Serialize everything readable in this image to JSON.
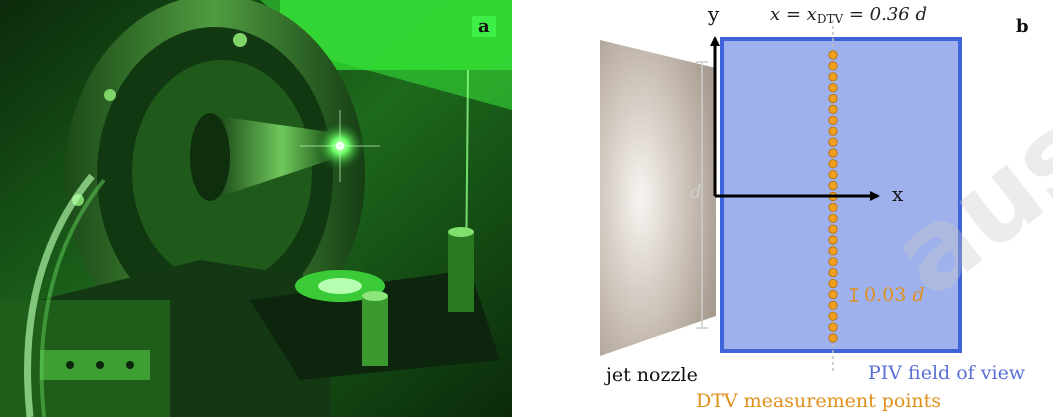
{
  "panel_a": {
    "label": "a"
  },
  "panel_b": {
    "label": "b",
    "equation": {
      "lhs": "x = x",
      "sub": "DTV",
      "rhs": " = 0.36 d"
    },
    "y_axis_label": "y",
    "x_axis_label": "x",
    "nozzle_height_label": "d",
    "spacing_label_value": "0.03",
    "spacing_label_unit": "d",
    "nozzle_label": "jet nozzle",
    "piv_label": "PIV field of view",
    "dtv_label": "DTV measurement points",
    "dtv_point_count": 27,
    "colors": {
      "piv_fill": "#9eb1ec",
      "piv_border": "#3f63d9",
      "dtv_point": "#f0a020",
      "dtv_text": "#e0901a",
      "piv_text": "#5a6fd6"
    }
  },
  "watermark": "aus"
}
